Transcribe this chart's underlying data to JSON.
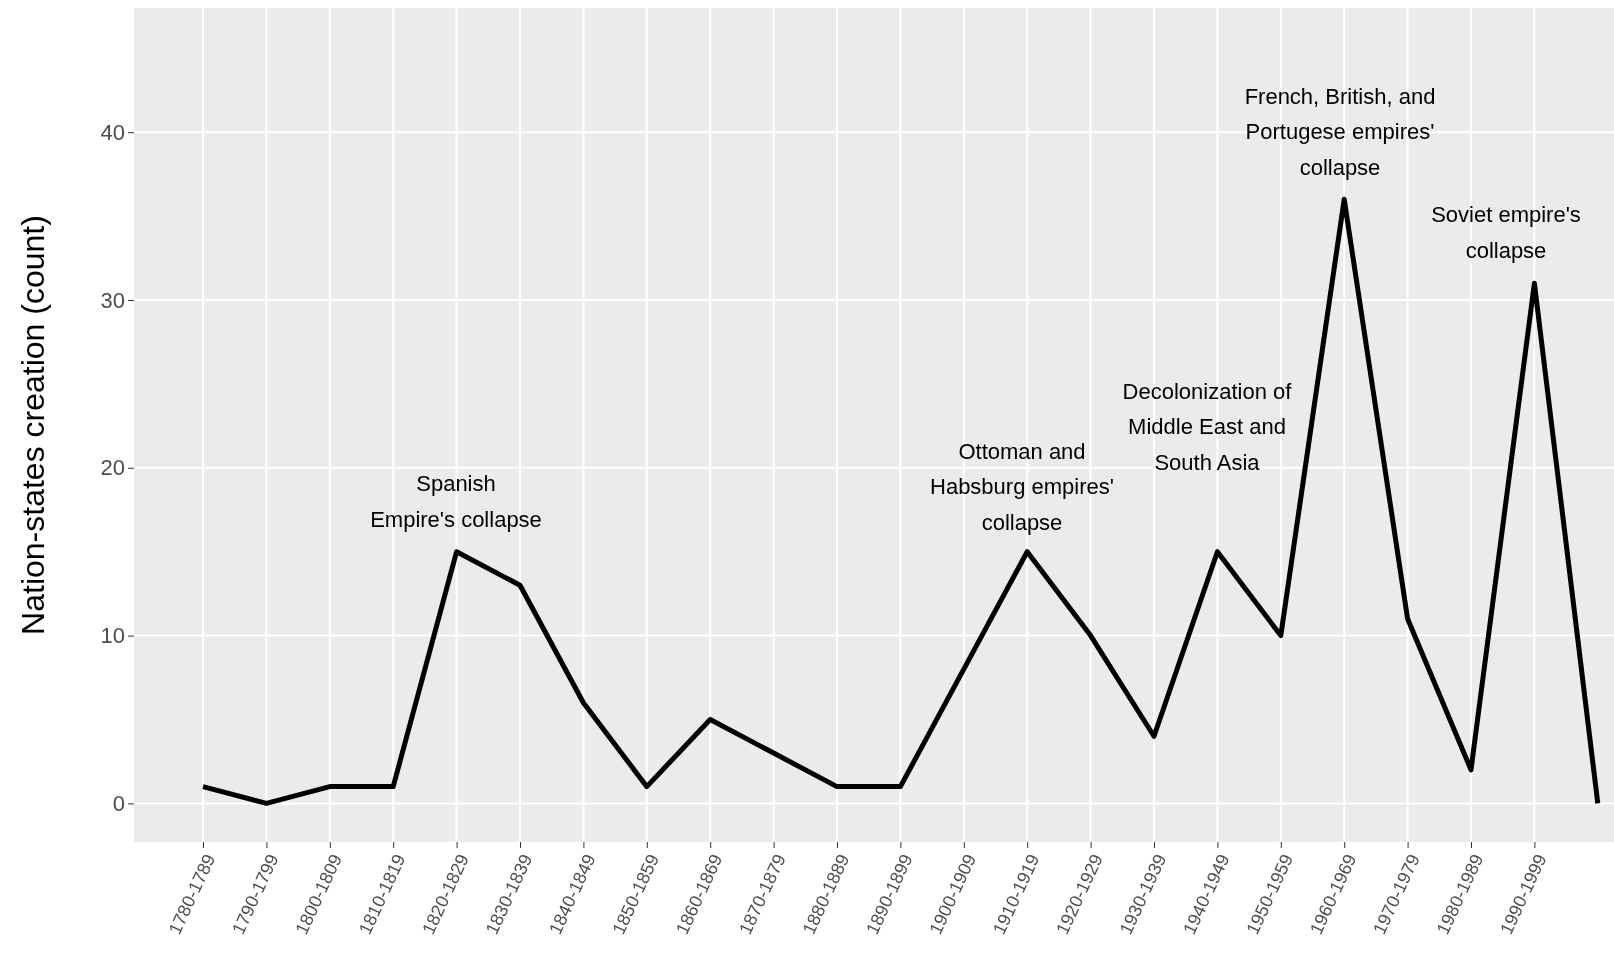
{
  "chart_data": {
    "type": "line",
    "ylabel": "Nation-states creation (count)",
    "categories": [
      "1780-1789",
      "1790-1799",
      "1800-1809",
      "1810-1819",
      "1820-1829",
      "1830-1839",
      "1840-1849",
      "1850-1859",
      "1860-1869",
      "1870-1879",
      "1880-1889",
      "1890-1899",
      "1900-1909",
      "1910-1919",
      "1920-1929",
      "1930-1939",
      "1940-1949",
      "1950-1959",
      "1960-1969",
      "1970-1979",
      "1980-1989",
      "1990-1999",
      null
    ],
    "series": [
      {
        "color": "#000000",
        "values": [
          1,
          0,
          1,
          1,
          15,
          13,
          6,
          1,
          5,
          3,
          1,
          1,
          8,
          15,
          10,
          4,
          15,
          10,
          36,
          11,
          2,
          31,
          0
        ]
      }
    ],
    "ylim": [
      -2.3,
      47.4
    ],
    "yticks": [
      0,
      10,
      20,
      30,
      40
    ],
    "grid": true,
    "line_style": "solid",
    "annotations": [
      "Spanish\nEmpire's collapse",
      "Ottoman and\nHabsburg empires'\ncollapse",
      "Decolonization of\nMiddle East and\nSouth Asia",
      "French, British, and\nPortugese empires'\ncollapse",
      "Soviet empire's\ncollapse"
    ]
  }
}
